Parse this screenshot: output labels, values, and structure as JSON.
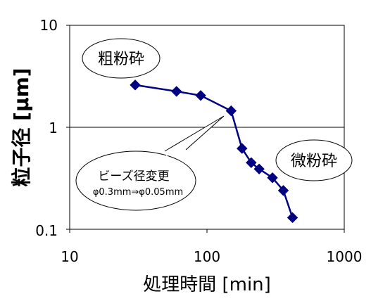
{
  "chart_data": {
    "type": "line",
    "xlabel": "処理時間 [min]",
    "ylabel": "粒子径 [μm]",
    "x_scale": "log",
    "y_scale": "log",
    "xlim": [
      10,
      1000
    ],
    "ylim": [
      0.1,
      10
    ],
    "x_ticks": [
      "10",
      "100",
      "1000"
    ],
    "y_ticks": [
      "10",
      "1",
      "0.1"
    ],
    "grid": "y-major",
    "series": [
      {
        "color": "#000080",
        "marker": "diamond",
        "points": [
          {
            "x": 30,
            "y": 2.6
          },
          {
            "x": 60,
            "y": 2.25
          },
          {
            "x": 90,
            "y": 2.05
          },
          {
            "x": 150,
            "y": 1.45
          },
          {
            "x": 180,
            "y": 0.62
          },
          {
            "x": 210,
            "y": 0.45
          },
          {
            "x": 240,
            "y": 0.39
          },
          {
            "x": 300,
            "y": 0.32
          },
          {
            "x": 360,
            "y": 0.24
          },
          {
            "x": 420,
            "y": 0.13
          }
        ]
      }
    ],
    "annotations": {
      "coarse": "粗粉砕",
      "fine": "微粉砕",
      "bead_change": "ビーズ径変更",
      "bead_detail": "φ0.3mm⇒φ0.05mm"
    }
  }
}
